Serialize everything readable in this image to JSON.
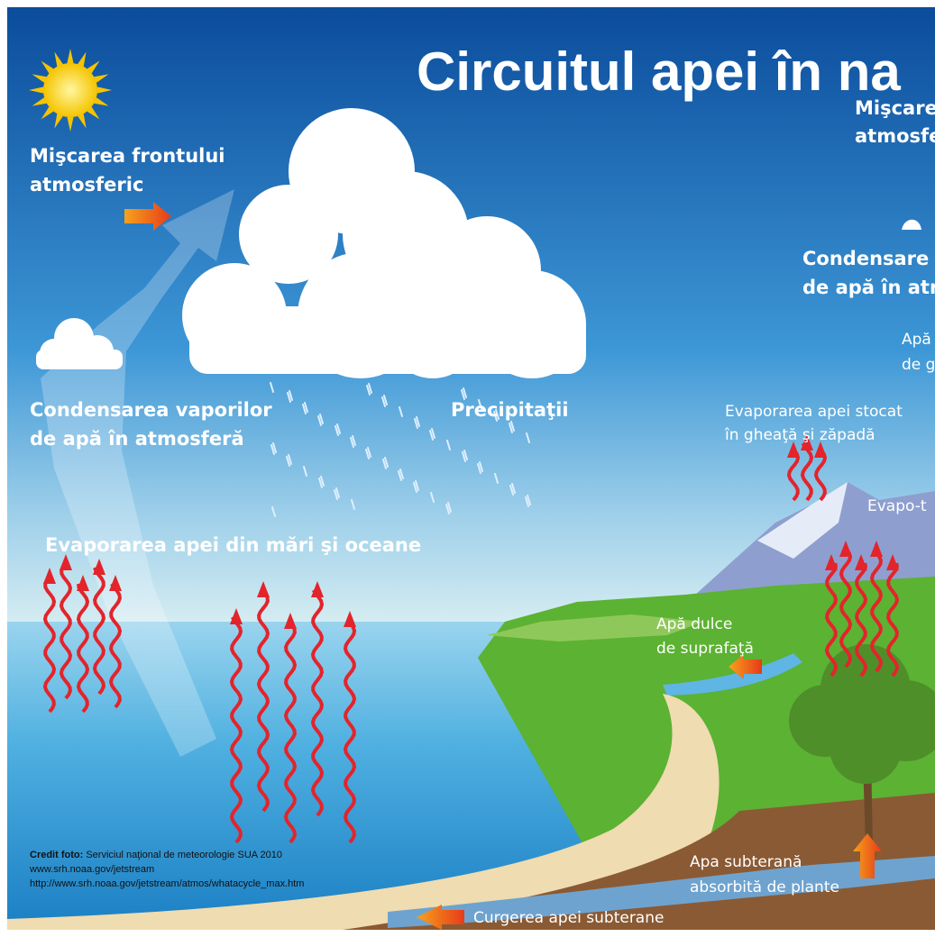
{
  "title": "Circuitul apei în na",
  "labels": {
    "front_left": [
      "Mişcarea frontului",
      "atmosferic"
    ],
    "front_right": [
      "Mişcare",
      "atmosfe"
    ],
    "condensation_right": [
      "Condensare",
      "de apă în atr"
    ],
    "ice_water": [
      "Apă",
      "de g"
    ],
    "condensation_left": [
      "Condensarea vaporilor",
      "de apă în atmosferă"
    ],
    "precipitation": "Precipitaţii",
    "evaporation_ice": [
      "Evaporarea apei stocat",
      "în gheaţă şi zăpadă"
    ],
    "evapotranspiration": "Evapo-t",
    "evaporation_sea": "Evaporarea apei din mări şi oceane",
    "surface_water": [
      "Apă dulce",
      "de suprafaţă"
    ],
    "groundwater_plants": [
      "Apa subterană",
      "absorbită de plante"
    ],
    "groundwater_flow": "Curgerea apei subterane"
  },
  "credit": {
    "label": "Credit foto:",
    "text": "Serviciul naţional de meteorologie SUA 2010",
    "lines": [
      "www.srh.noaa.gov/jetstream",
      "http://www.srh.noaa.gov/jetstream/atmos/whatacycle_max.htm"
    ]
  }
}
